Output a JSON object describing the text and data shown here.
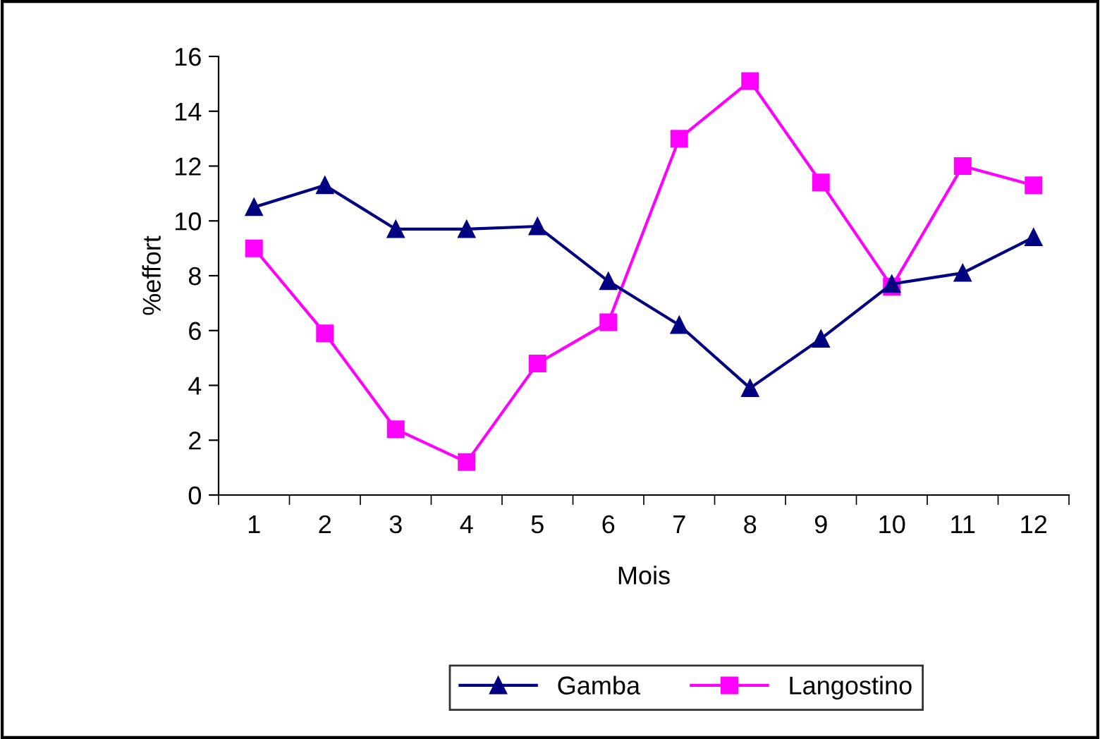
{
  "chart_data": {
    "type": "line",
    "xlabel": "Mois",
    "ylabel": "%effort",
    "categories": [
      "1",
      "2",
      "3",
      "4",
      "5",
      "6",
      "7",
      "8",
      "9",
      "10",
      "11",
      "12"
    ],
    "series": [
      {
        "name": "Gamba",
        "color": "#000080",
        "marker": "triangle",
        "values": [
          10.5,
          11.3,
          9.7,
          9.7,
          9.8,
          7.8,
          6.2,
          3.9,
          5.7,
          7.7,
          8.1,
          9.4
        ]
      },
      {
        "name": "Langostino",
        "color": "#ff00ff",
        "marker": "square",
        "values": [
          9.0,
          5.9,
          2.4,
          1.2,
          4.8,
          6.3,
          13.0,
          15.1,
          11.4,
          7.6,
          12.0,
          11.3
        ]
      }
    ],
    "ylim": [
      0,
      16
    ],
    "yticks": [
      0,
      2,
      4,
      6,
      8,
      10,
      12,
      14,
      16
    ],
    "grid": false,
    "legend": "bottom",
    "line_style": "solid"
  }
}
